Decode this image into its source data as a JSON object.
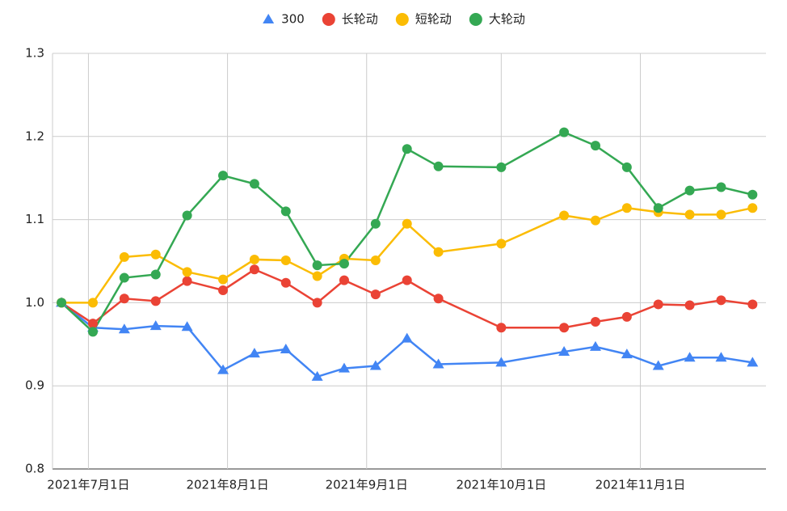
{
  "chart_data": {
    "type": "line",
    "x": [
      "2021-06-25",
      "2021-07-02",
      "2021-07-09",
      "2021-07-16",
      "2021-07-23",
      "2021-07-31",
      "2021-08-07",
      "2021-08-14",
      "2021-08-21",
      "2021-08-27",
      "2021-09-03",
      "2021-09-10",
      "2021-09-17",
      "2021-10-01",
      "2021-10-15",
      "2021-10-22",
      "2021-10-29",
      "2021-11-05",
      "2021-11-12",
      "2021-11-19",
      "2021-11-26"
    ],
    "series": [
      {
        "name": "300",
        "color": "#4285f4",
        "marker": "triangle",
        "values": [
          1.0,
          0.97,
          0.968,
          0.972,
          0.971,
          0.919,
          0.939,
          0.944,
          0.911,
          0.921,
          0.924,
          0.957,
          0.926,
          0.928,
          0.941,
          0.947,
          0.938,
          0.924,
          0.934,
          0.934,
          0.928
        ]
      },
      {
        "name": "长轮动",
        "color": "#ea4335",
        "marker": "circle",
        "values": [
          1.0,
          0.975,
          1.005,
          1.002,
          1.026,
          1.015,
          1.04,
          1.024,
          1.0,
          1.027,
          1.01,
          1.027,
          1.005,
          0.97,
          0.97,
          0.977,
          0.983,
          0.998,
          0.997,
          1.003,
          0.998
        ]
      },
      {
        "name": "短轮动",
        "color": "#fbbc04",
        "marker": "circle",
        "values": [
          1.0,
          1.0,
          1.055,
          1.058,
          1.037,
          1.028,
          1.052,
          1.051,
          1.032,
          1.053,
          1.051,
          1.095,
          1.061,
          1.071,
          1.105,
          1.099,
          1.114,
          1.109,
          1.106,
          1.106,
          1.114
        ]
      },
      {
        "name": "大轮动",
        "color": "#34a853",
        "marker": "circle",
        "values": [
          1.0,
          0.965,
          1.03,
          1.034,
          1.105,
          1.153,
          1.143,
          1.11,
          1.045,
          1.047,
          1.095,
          1.185,
          1.164,
          1.163,
          1.205,
          1.189,
          1.163,
          1.114,
          1.135,
          1.139,
          1.13
        ]
      }
    ],
    "xlim": [
      "2021-06-23",
      "2021-11-29"
    ],
    "xticks": [
      {
        "value": "2021-07-01",
        "label": "2021年7月1日"
      },
      {
        "value": "2021-08-01",
        "label": "2021年8月1日"
      },
      {
        "value": "2021-09-01",
        "label": "2021年9月1日"
      },
      {
        "value": "2021-10-01",
        "label": "2021年10月1日"
      },
      {
        "value": "2021-11-01",
        "label": "2021年11月1日"
      }
    ],
    "ylim": [
      0.8,
      1.3
    ],
    "yticks": [
      0.8,
      0.9,
      {
        "value": 1,
        "label": "1.0"
      },
      1.1,
      1.2,
      1.3
    ],
    "grid": true,
    "legend": "top"
  }
}
